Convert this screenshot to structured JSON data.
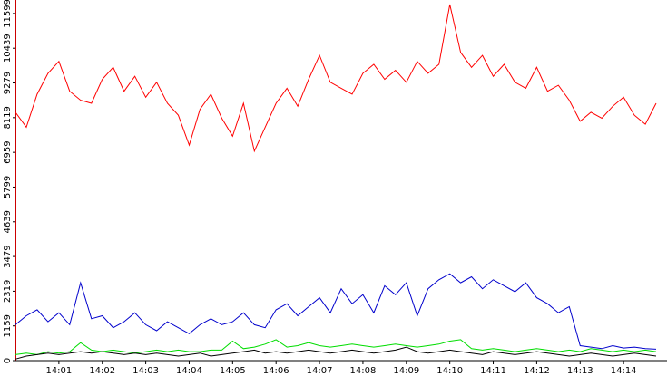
{
  "chart_data": {
    "type": "line",
    "x": [
      0,
      0.25,
      0.5,
      0.75,
      1,
      1.25,
      1.5,
      1.75,
      2,
      2.25,
      2.5,
      2.75,
      3,
      3.25,
      3.5,
      3.75,
      4,
      4.25,
      4.5,
      4.75,
      5,
      5.25,
      5.5,
      5.75,
      6,
      6.25,
      6.5,
      6.75,
      7,
      7.25,
      7.5,
      7.75,
      8,
      8.25,
      8.5,
      8.75,
      9,
      9.25,
      9.5,
      9.75,
      10,
      10.25,
      10.5,
      10.75,
      11,
      11.25,
      11.5,
      11.75,
      12,
      12.25,
      12.5,
      12.75,
      13,
      13.25,
      13.5,
      13.75,
      14,
      14.25,
      14.5,
      14.75
    ],
    "series": [
      {
        "color": "#ff0000",
        "values": [
          8300,
          7800,
          8900,
          9600,
          10000,
          9000,
          8700,
          8600,
          9400,
          9800,
          9000,
          9500,
          8800,
          9300,
          8600,
          8200,
          7200,
          8400,
          8900,
          8100,
          7500,
          8600,
          7000,
          7800,
          8600,
          9100,
          8500,
          9400,
          10200,
          9300,
          9100,
          8900,
          9600,
          9900,
          9400,
          9700,
          9300,
          10000,
          9600,
          9900,
          11900,
          10300,
          9800,
          10200,
          9500,
          9900,
          9300,
          9100,
          9800,
          9000,
          9200,
          8700,
          8000,
          8300,
          8100,
          8500,
          8800,
          8200,
          7900,
          8600
        ]
      },
      {
        "color": "#0000cc",
        "values": [
          1200,
          1500,
          1700,
          1300,
          1600,
          1200,
          2600,
          1400,
          1500,
          1100,
          1300,
          1600,
          1200,
          1000,
          1300,
          1100,
          900,
          1200,
          1400,
          1200,
          1300,
          1600,
          1200,
          1100,
          1700,
          1900,
          1500,
          1800,
          2100,
          1600,
          2400,
          1900,
          2200,
          1600,
          2500,
          2200,
          2600,
          1500,
          2400,
          2700,
          2900,
          2600,
          2800,
          2400,
          2700,
          2500,
          2300,
          2600,
          2100,
          1900,
          1600,
          1800,
          500,
          450,
          400,
          500,
          420,
          450,
          400,
          380
        ]
      },
      {
        "color": "#00dd00",
        "values": [
          200,
          250,
          200,
          300,
          250,
          300,
          600,
          350,
          300,
          350,
          300,
          250,
          300,
          350,
          300,
          350,
          300,
          300,
          350,
          350,
          650,
          400,
          450,
          550,
          700,
          450,
          500,
          600,
          500,
          450,
          500,
          550,
          500,
          450,
          500,
          550,
          500,
          450,
          500,
          550,
          650,
          700,
          400,
          350,
          400,
          350,
          300,
          350,
          400,
          350,
          300,
          350,
          300,
          400,
          350,
          300,
          350,
          300,
          350,
          300
        ]
      },
      {
        "color": "#000000",
        "values": [
          50,
          150,
          200,
          250,
          200,
          250,
          300,
          250,
          300,
          250,
          200,
          250,
          200,
          250,
          200,
          150,
          200,
          250,
          150,
          200,
          250,
          300,
          350,
          250,
          300,
          250,
          300,
          350,
          300,
          250,
          300,
          350,
          300,
          250,
          300,
          350,
          450,
          300,
          250,
          300,
          350,
          300,
          250,
          200,
          300,
          250,
          200,
          250,
          300,
          250,
          200,
          150,
          200,
          250,
          200,
          150,
          200,
          250,
          200,
          150
        ]
      }
    ],
    "xlim": [
      0,
      15
    ],
    "xticks": [
      {
        "value": 1,
        "label": "14:01"
      },
      {
        "value": 2,
        "label": "14:02"
      },
      {
        "value": 3,
        "label": "14:03"
      },
      {
        "value": 4,
        "label": "14:04"
      },
      {
        "value": 5,
        "label": "14:05"
      },
      {
        "value": 6,
        "label": "14:06"
      },
      {
        "value": 7,
        "label": "14:07"
      },
      {
        "value": 8,
        "label": "14:08"
      },
      {
        "value": 9,
        "label": "14:09"
      },
      {
        "value": 10,
        "label": "14:10"
      },
      {
        "value": 11,
        "label": "14:11"
      },
      {
        "value": 12,
        "label": "14:12"
      },
      {
        "value": 13,
        "label": "14:13"
      },
      {
        "value": 14,
        "label": "14:14"
      }
    ],
    "ylim": [
      0,
      12050
    ],
    "yticks": [
      0,
      1159,
      2319,
      3479,
      4639,
      5799,
      6959,
      8119,
      9279,
      10439,
      11599
    ],
    "axis_color": "#cc0000"
  }
}
